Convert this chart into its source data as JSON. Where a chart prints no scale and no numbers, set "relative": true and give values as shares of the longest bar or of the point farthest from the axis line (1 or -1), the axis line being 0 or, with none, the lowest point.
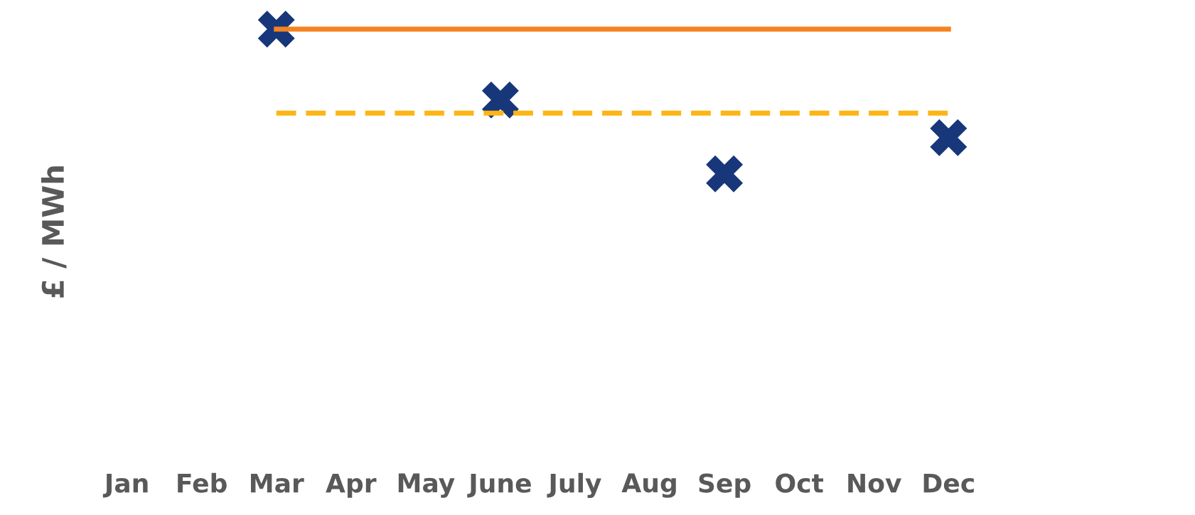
{
  "chart_data": {
    "type": "scatter",
    "ylabel": "£ / MWh",
    "relative": true,
    "categories": [
      "Jan",
      "Feb",
      "Mar",
      "Apr",
      "May",
      "June",
      "July",
      "Aug",
      "Sep",
      "Oct",
      "Nov",
      "Dec"
    ],
    "series": [
      {
        "type": "line",
        "color": "#f58220",
        "line_style": "solid",
        "values": [
          null,
          null,
          1,
          1,
          1,
          1,
          1,
          1,
          1,
          1,
          1,
          1
        ]
      },
      {
        "type": "line",
        "color": "#fdb515",
        "line_style": "dashed",
        "values": [
          null,
          null,
          0.42,
          0.42,
          0.42,
          0.42,
          0.42,
          0.42,
          0.42,
          0.42,
          0.42,
          0.42
        ]
      },
      {
        "color": "#17377a",
        "marker": "cross",
        "values": [
          null,
          null,
          1,
          null,
          null,
          0.51,
          null,
          null,
          0,
          null,
          null,
          0.25
        ]
      }
    ],
    "grid": false,
    "legend": false
  }
}
